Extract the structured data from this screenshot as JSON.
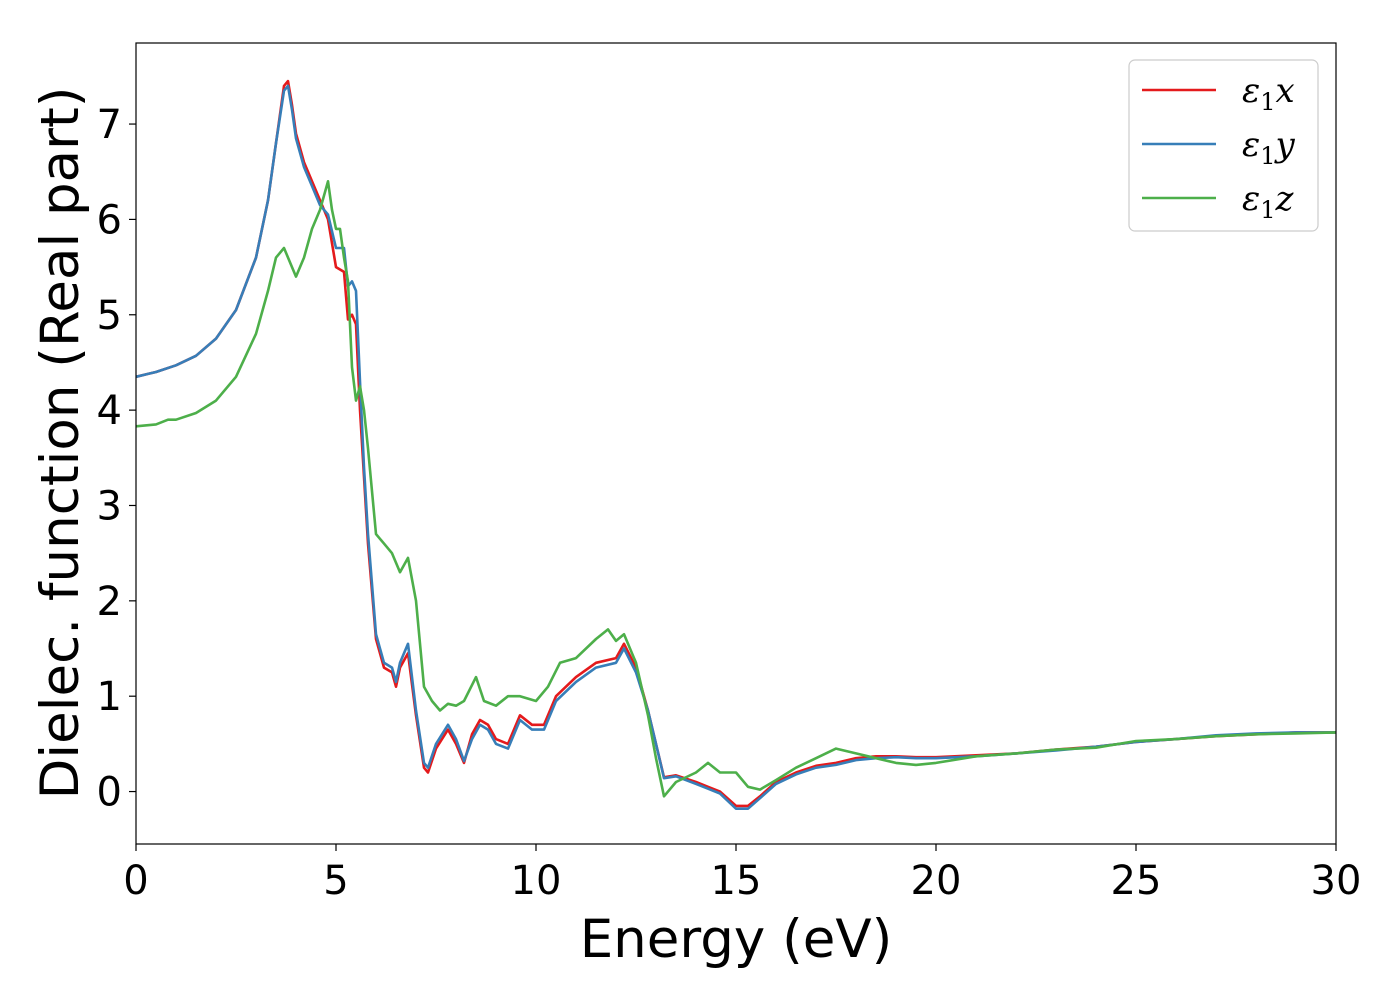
{
  "chart_data": {
    "type": "line",
    "xlabel": "Energy (eV)",
    "ylabel": "Dielec. function (Real part)",
    "xlim": [
      0,
      30
    ],
    "ylim": [
      -0.55,
      7.85
    ],
    "xticks": [
      0,
      5,
      10,
      15,
      20,
      25,
      30
    ],
    "yticks": [
      0,
      1,
      2,
      3,
      4,
      5,
      6,
      7
    ],
    "grid": false,
    "legend_position": "top-right",
    "series": [
      {
        "name": "ε1x",
        "legend": {
          "base": "ε",
          "sub": "1",
          "suffix": "x"
        },
        "color": "#e41a1c",
        "x": [
          0,
          0.3,
          0.5,
          1.0,
          1.5,
          2.0,
          2.5,
          3.0,
          3.3,
          3.5,
          3.7,
          3.8,
          3.9,
          4.0,
          4.2,
          4.4,
          4.6,
          4.8,
          5.0,
          5.2,
          5.3,
          5.4,
          5.5,
          5.6,
          5.7,
          5.8,
          6.0,
          6.2,
          6.4,
          6.5,
          6.6,
          6.8,
          7.0,
          7.2,
          7.3,
          7.5,
          7.8,
          8.0,
          8.2,
          8.4,
          8.6,
          8.8,
          9.0,
          9.3,
          9.6,
          9.9,
          10.2,
          10.5,
          11.0,
          11.5,
          12.0,
          12.2,
          12.5,
          12.8,
          13.0,
          13.2,
          13.5,
          14.0,
          14.3,
          14.6,
          15.0,
          15.3,
          15.6,
          16.0,
          16.5,
          17.0,
          17.5,
          18.0,
          18.5,
          19.0,
          19.5,
          20.0,
          21.0,
          22.0,
          23.0,
          24.0,
          25.0,
          26.0,
          27.0,
          28.0,
          29.0,
          30.0
        ],
        "y": [
          4.35,
          4.38,
          4.4,
          4.47,
          4.57,
          4.75,
          5.05,
          5.6,
          6.2,
          6.8,
          7.4,
          7.45,
          7.2,
          6.9,
          6.6,
          6.4,
          6.2,
          6.0,
          5.5,
          5.45,
          4.95,
          5.0,
          4.9,
          4.0,
          3.3,
          2.6,
          1.6,
          1.3,
          1.25,
          1.1,
          1.3,
          1.45,
          0.8,
          0.25,
          0.2,
          0.45,
          0.65,
          0.5,
          0.3,
          0.6,
          0.75,
          0.7,
          0.55,
          0.5,
          0.8,
          0.7,
          0.7,
          1.0,
          1.2,
          1.35,
          1.4,
          1.55,
          1.3,
          0.85,
          0.5,
          0.15,
          0.17,
          0.1,
          0.05,
          0.0,
          -0.15,
          -0.15,
          -0.05,
          0.1,
          0.2,
          0.27,
          0.3,
          0.35,
          0.37,
          0.37,
          0.36,
          0.36,
          0.38,
          0.4,
          0.44,
          0.47,
          0.52,
          0.55,
          0.58,
          0.6,
          0.62,
          0.62
        ]
      },
      {
        "name": "ε1y",
        "legend": {
          "base": "ε",
          "sub": "1",
          "suffix": "y"
        },
        "color": "#377eb8",
        "x": [
          0,
          0.3,
          0.5,
          1.0,
          1.5,
          2.0,
          2.5,
          3.0,
          3.3,
          3.5,
          3.7,
          3.8,
          3.9,
          4.0,
          4.2,
          4.4,
          4.6,
          4.8,
          5.0,
          5.2,
          5.3,
          5.4,
          5.5,
          5.6,
          5.7,
          5.8,
          6.0,
          6.2,
          6.4,
          6.5,
          6.6,
          6.8,
          7.0,
          7.2,
          7.3,
          7.5,
          7.8,
          8.0,
          8.2,
          8.4,
          8.6,
          8.8,
          9.0,
          9.3,
          9.6,
          9.9,
          10.2,
          10.5,
          11.0,
          11.5,
          12.0,
          12.2,
          12.5,
          12.8,
          13.0,
          13.2,
          13.5,
          14.0,
          14.3,
          14.6,
          15.0,
          15.3,
          15.6,
          16.0,
          16.5,
          17.0,
          17.5,
          18.0,
          18.5,
          19.0,
          19.5,
          20.0,
          21.0,
          22.0,
          23.0,
          24.0,
          25.0,
          26.0,
          27.0,
          28.0,
          29.0,
          30.0
        ],
        "y": [
          4.35,
          4.38,
          4.4,
          4.47,
          4.57,
          4.75,
          5.05,
          5.6,
          6.2,
          6.8,
          7.35,
          7.4,
          7.15,
          6.85,
          6.55,
          6.35,
          6.15,
          6.05,
          5.7,
          5.7,
          5.3,
          5.35,
          5.25,
          4.3,
          3.4,
          2.7,
          1.65,
          1.35,
          1.3,
          1.15,
          1.35,
          1.55,
          0.85,
          0.3,
          0.25,
          0.5,
          0.7,
          0.55,
          0.32,
          0.55,
          0.7,
          0.65,
          0.5,
          0.45,
          0.75,
          0.65,
          0.65,
          0.95,
          1.15,
          1.3,
          1.35,
          1.5,
          1.25,
          0.85,
          0.5,
          0.14,
          0.16,
          0.08,
          0.03,
          -0.02,
          -0.18,
          -0.18,
          -0.07,
          0.08,
          0.18,
          0.25,
          0.28,
          0.33,
          0.35,
          0.36,
          0.35,
          0.35,
          0.37,
          0.4,
          0.43,
          0.47,
          0.52,
          0.55,
          0.59,
          0.61,
          0.62,
          0.62
        ]
      },
      {
        "name": "ε1z",
        "legend": {
          "base": "ε",
          "sub": "1",
          "suffix": "z"
        },
        "color": "#4daf4a",
        "x": [
          0,
          0.5,
          0.8,
          1.0,
          1.5,
          2.0,
          2.5,
          3.0,
          3.3,
          3.5,
          3.7,
          3.9,
          4.0,
          4.2,
          4.4,
          4.6,
          4.7,
          4.8,
          4.9,
          5.0,
          5.1,
          5.2,
          5.3,
          5.4,
          5.5,
          5.6,
          5.7,
          5.8,
          6.0,
          6.2,
          6.4,
          6.6,
          6.8,
          7.0,
          7.2,
          7.4,
          7.6,
          7.8,
          8.0,
          8.2,
          8.5,
          8.7,
          9.0,
          9.3,
          9.6,
          10.0,
          10.3,
          10.6,
          11.0,
          11.5,
          11.8,
          12.0,
          12.2,
          12.5,
          12.8,
          13.0,
          13.2,
          13.5,
          14.0,
          14.3,
          14.6,
          15.0,
          15.3,
          15.6,
          16.0,
          16.5,
          17.0,
          17.5,
          18.0,
          18.5,
          19.0,
          19.5,
          20.0,
          21.0,
          22.0,
          23.0,
          24.0,
          25.0,
          26.0,
          27.0,
          28.0,
          29.0,
          30.0
        ],
        "y": [
          3.83,
          3.85,
          3.9,
          3.9,
          3.97,
          4.1,
          4.35,
          4.8,
          5.25,
          5.6,
          5.7,
          5.5,
          5.4,
          5.6,
          5.9,
          6.1,
          6.25,
          6.4,
          6.1,
          5.9,
          5.9,
          5.6,
          5.35,
          4.45,
          4.1,
          4.25,
          4.0,
          3.6,
          2.7,
          2.6,
          2.5,
          2.3,
          2.45,
          2.0,
          1.1,
          0.95,
          0.85,
          0.92,
          0.9,
          0.95,
          1.2,
          0.95,
          0.9,
          1.0,
          1.0,
          0.95,
          1.1,
          1.35,
          1.4,
          1.6,
          1.7,
          1.58,
          1.65,
          1.35,
          0.8,
          0.35,
          -0.05,
          0.1,
          0.2,
          0.3,
          0.2,
          0.2,
          0.05,
          0.02,
          0.12,
          0.25,
          0.35,
          0.45,
          0.4,
          0.35,
          0.3,
          0.28,
          0.3,
          0.37,
          0.4,
          0.44,
          0.46,
          0.53,
          0.55,
          0.58,
          0.6,
          0.61,
          0.62
        ]
      }
    ]
  }
}
